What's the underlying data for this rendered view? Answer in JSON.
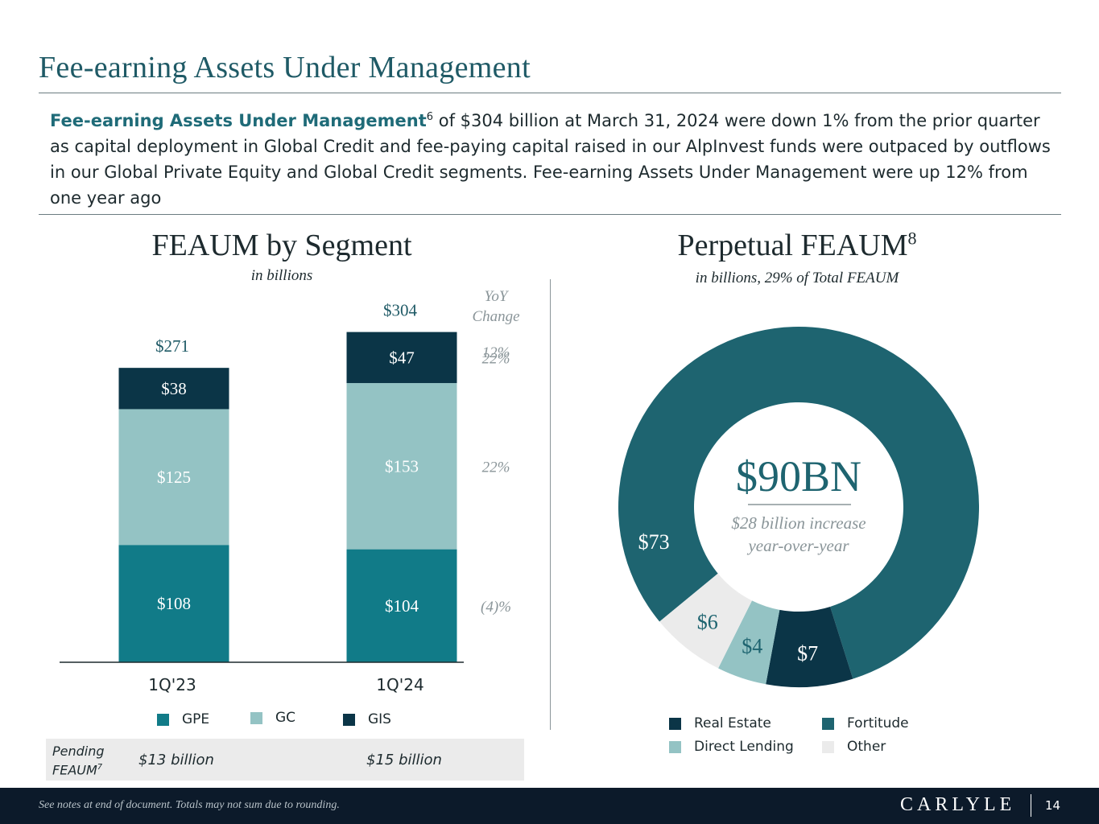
{
  "page": {
    "title": "Fee-earning Assets Under Management",
    "summary_lead": "Fee-earning Assets Under Management",
    "summary_sup": "6",
    "summary_text": " of $304 billion at March 31, 2024 were down 1% from the prior quarter as capital deployment in Global Credit and fee-paying capital raised in our AlpInvest funds were outpaced by outflows in our Global Private Equity and Global Credit segments. Fee-earning Assets Under Management were up 12% from one year ago",
    "footer_note": "See notes at end of document. Totals may not sum due to rounding.",
    "logo": "CARLYLE",
    "page_number": "14"
  },
  "colors": {
    "gpe": "#117b88",
    "gc": "#94c3c4",
    "gis": "#0b3547",
    "fortitude": "#1e6470",
    "real_estate": "#0b3547",
    "direct_lending": "#94c3c4",
    "other": "#ebebeb",
    "title": "#1f5a66"
  },
  "chart_data": [
    {
      "type": "bar",
      "stacked": true,
      "title": "FEAUM by Segment",
      "subtitle": "in billions",
      "categories": [
        "1Q'23",
        "1Q'24"
      ],
      "series": [
        {
          "name": "GPE",
          "values": [
            108,
            104
          ],
          "labels": [
            "$108",
            "$104"
          ],
          "yoy": "(4)%"
        },
        {
          "name": "GC",
          "values": [
            125,
            153
          ],
          "labels": [
            "$125",
            "$153"
          ],
          "yoy": "22%"
        },
        {
          "name": "GIS",
          "values": [
            38,
            47
          ],
          "labels": [
            "$38",
            "$47"
          ],
          "yoy": "22%"
        }
      ],
      "totals": [
        271,
        304
      ],
      "total_labels": [
        "$271",
        "$304"
      ],
      "total_yoy": "12%",
      "yoy_header_1": "YoY",
      "yoy_header_2": "Change",
      "legend": [
        "GPE",
        "GC",
        "GIS"
      ],
      "legend_placement": "bottom",
      "pending_label_1": "Pending",
      "pending_label_2": "FEAUM",
      "pending_sup": "7",
      "pending_values": [
        "$13 billion",
        "$15 billion"
      ],
      "ylim": [
        0,
        320
      ]
    },
    {
      "type": "pie",
      "donut": true,
      "title": "Perpetual FEAUM",
      "title_sup": "8",
      "subtitle": "in billions, 29% of Total FEAUM",
      "center_value": "$90BN",
      "center_note_1": "$28 billion increase",
      "center_note_2": "year-over-year",
      "slices": [
        {
          "name": "Fortitude",
          "value": 73,
          "label": "$73"
        },
        {
          "name": "Real Estate",
          "value": 7,
          "label": "$7"
        },
        {
          "name": "Direct Lending",
          "value": 4,
          "label": "$4"
        },
        {
          "name": "Other",
          "value": 6,
          "label": "$6"
        }
      ],
      "legend": [
        "Real Estate",
        "Fortitude",
        "Direct Lending",
        "Other"
      ],
      "legend_placement": "bottom"
    }
  ]
}
